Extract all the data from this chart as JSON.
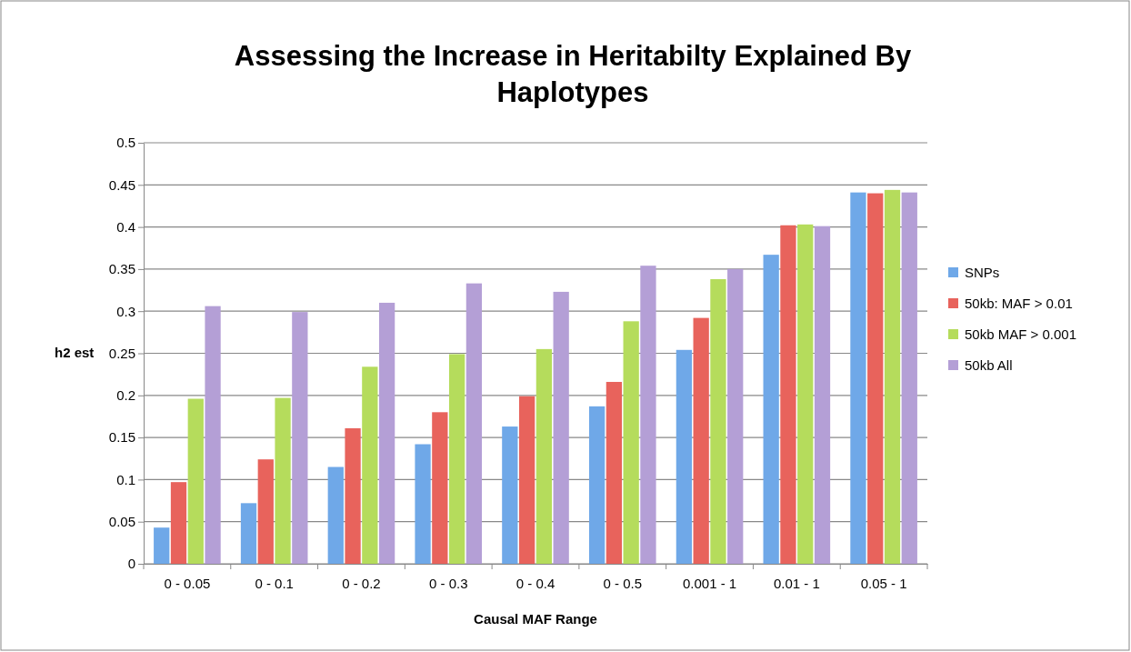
{
  "chart_data": {
    "type": "bar",
    "title": "Assessing the Increase in Heritabilty Explained By Haplotypes",
    "xlabel": "Causal MAF Range",
    "ylabel": "h2 est",
    "categories": [
      "0 - 0.05",
      "0 - 0.1",
      "0 - 0.2",
      "0 - 0.3",
      "0 - 0.4",
      "0 - 0.5",
      "0.001 - 1",
      "0.01 - 1",
      "0.05 - 1"
    ],
    "series": [
      {
        "name": "SNPs",
        "color": "#6fa8e8",
        "values": [
          0.043,
          0.072,
          0.115,
          0.142,
          0.163,
          0.187,
          0.254,
          0.367,
          0.441
        ]
      },
      {
        "name": "50kb: MAF > 0.01",
        "color": "#e8635c",
        "values": [
          0.097,
          0.124,
          0.161,
          0.18,
          0.199,
          0.216,
          0.292,
          0.402,
          0.44
        ]
      },
      {
        "name": "50kb MAF > 0.001",
        "color": "#b5dc5c",
        "values": [
          0.196,
          0.197,
          0.234,
          0.249,
          0.255,
          0.288,
          0.338,
          0.403,
          0.444
        ]
      },
      {
        "name": "50kb All",
        "color": "#b49fd6",
        "values": [
          0.306,
          0.299,
          0.31,
          0.333,
          0.323,
          0.354,
          0.35,
          0.401,
          0.441
        ]
      }
    ],
    "ylim": [
      0,
      0.5
    ],
    "yticks": [
      0,
      0.05,
      0.1,
      0.15,
      0.2,
      0.25,
      0.3,
      0.35,
      0.4,
      0.45,
      0.5
    ],
    "grid": "y",
    "legend": "right"
  }
}
